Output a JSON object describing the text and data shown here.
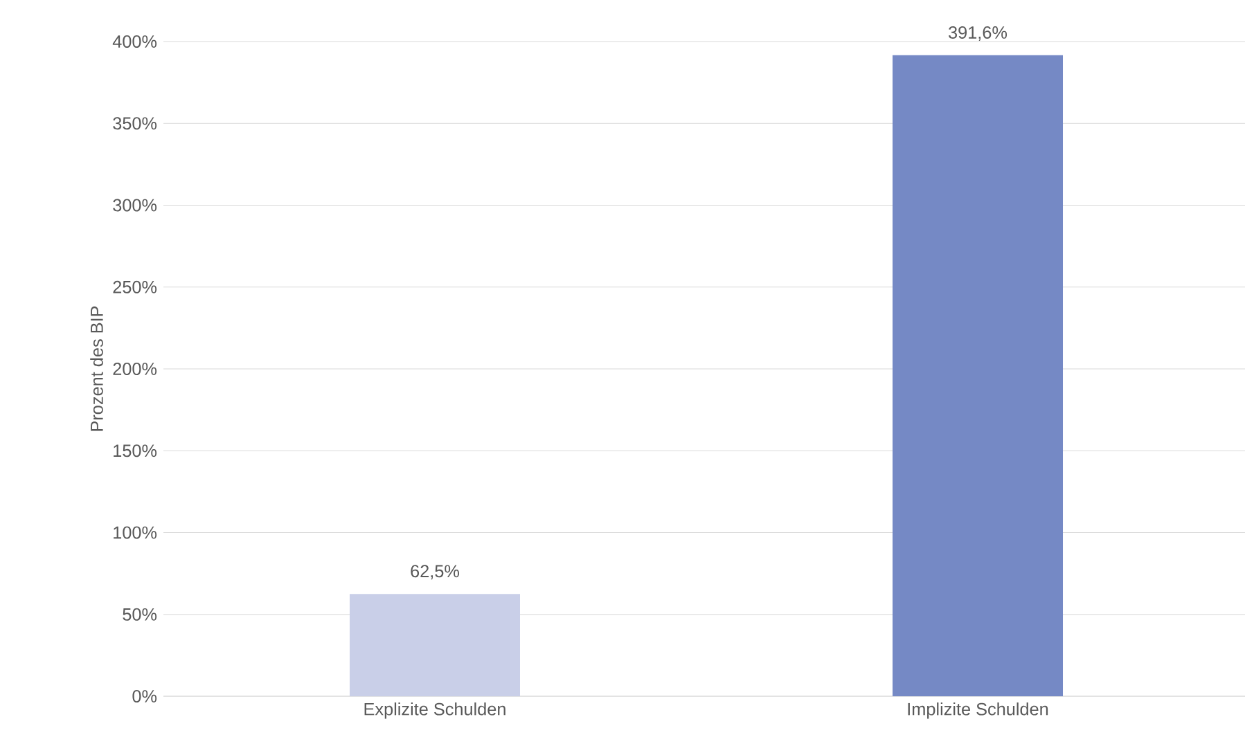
{
  "chart_data": {
    "type": "bar",
    "ylabel": "Prozent des BIP",
    "categories": [
      "Explizite Schulden",
      "Implizite Schulden"
    ],
    "values": [
      62.5,
      391.6
    ],
    "colors": [
      "#c9cfe8",
      "#7589c5"
    ],
    "value_labels": [
      "62,5%",
      "391,6%"
    ],
    "ylim": [
      0,
      400
    ],
    "yticks": [
      {
        "value": 0,
        "label": "0%"
      },
      {
        "value": 50,
        "label": "50%"
      },
      {
        "value": 100,
        "label": "100%"
      },
      {
        "value": 150,
        "label": "150%"
      },
      {
        "value": 200,
        "label": "200%"
      },
      {
        "value": 250,
        "label": "250%"
      },
      {
        "value": 300,
        "label": "300%"
      },
      {
        "value": 350,
        "label": "350%"
      },
      {
        "value": 400,
        "label": "400%"
      }
    ],
    "grid": "y"
  }
}
